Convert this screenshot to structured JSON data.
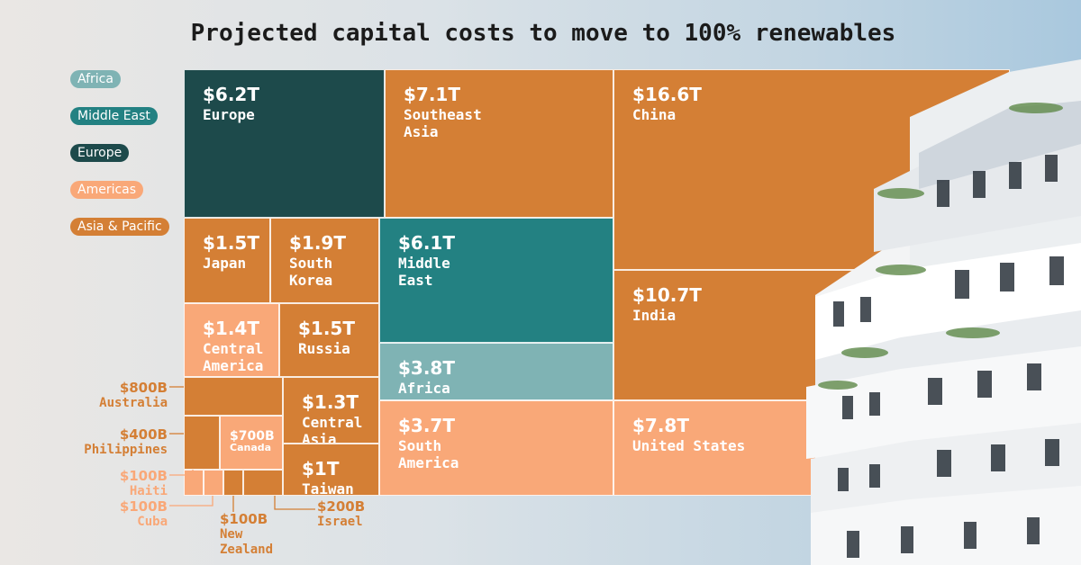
{
  "title": "Projected capital costs to move to 100% renewables",
  "colors": {
    "Africa": "#7fb3b4",
    "Middle East": "#238182",
    "Europe": "#1d4a4b",
    "Americas": "#f9a878",
    "Asia & Pacific": "#d47f35"
  },
  "legend": [
    {
      "label": "Africa",
      "color": "#7fb3b4",
      "text_color": "#ffffff"
    },
    {
      "label": "Middle East",
      "color": "#238182",
      "text_color": "#ffffff"
    },
    {
      "label": "Europe",
      "color": "#1d4a4b",
      "text_color": "#ffffff"
    },
    {
      "label": "Americas",
      "color": "#f9a878",
      "text_color": "#ffffff"
    },
    {
      "label": "Asia & Pacific",
      "color": "#d47f35",
      "text_color": "#ffffff"
    }
  ],
  "chart_data": {
    "type": "treemap",
    "unit": "USD",
    "items": [
      {
        "name": "China",
        "value": 16.6,
        "label": "$16.6T",
        "region": "Asia & Pacific"
      },
      {
        "name": "India",
        "value": 10.7,
        "label": "$10.7T",
        "region": "Asia & Pacific"
      },
      {
        "name": "United States",
        "value": 7.8,
        "label": "$7.8T",
        "region": "Americas"
      },
      {
        "name": "Southeast\nAsia",
        "value": 7.1,
        "label": "$7.1T",
        "region": "Asia & Pacific"
      },
      {
        "name": "Europe",
        "value": 6.2,
        "label": "$6.2T",
        "region": "Europe"
      },
      {
        "name": "Middle\nEast",
        "value": 6.1,
        "label": "$6.1T",
        "region": "Middle East"
      },
      {
        "name": "Africa",
        "value": 3.8,
        "label": "$3.8T",
        "region": "Africa"
      },
      {
        "name": "South\nAmerica",
        "value": 3.7,
        "label": "$3.7T",
        "region": "Americas"
      },
      {
        "name": "South\nKorea",
        "value": 1.9,
        "label": "$1.9T",
        "region": "Asia & Pacific"
      },
      {
        "name": "Japan",
        "value": 1.5,
        "label": "$1.5T",
        "region": "Asia & Pacific"
      },
      {
        "name": "Russia",
        "value": 1.5,
        "label": "$1.5T",
        "region": "Asia & Pacific"
      },
      {
        "name": "Central\nAmerica",
        "value": 1.4,
        "label": "$1.4T",
        "region": "Americas"
      },
      {
        "name": "Central\nAsia",
        "value": 1.3,
        "label": "$1.3T",
        "region": "Asia & Pacific"
      },
      {
        "name": "Taiwan",
        "value": 1.0,
        "label": "$1T",
        "region": "Asia & Pacific"
      },
      {
        "name": "Australia",
        "value": 0.8,
        "label": "$800B",
        "region": "Asia & Pacific"
      },
      {
        "name": "Canada",
        "value": 0.7,
        "label": "$700B",
        "region": "Americas"
      },
      {
        "name": "Philippines",
        "value": 0.4,
        "label": "$400B",
        "region": "Asia & Pacific"
      },
      {
        "name": "Israel",
        "value": 0.2,
        "label": "$200B",
        "region": "Asia & Pacific"
      },
      {
        "name": "Haiti",
        "value": 0.1,
        "label": "$100B",
        "region": "Americas"
      },
      {
        "name": "Cuba",
        "value": 0.1,
        "label": "$100B",
        "region": "Americas"
      },
      {
        "name": "New\nZealand",
        "value": 0.1,
        "label": "$100B",
        "region": "Asia & Pacific"
      }
    ]
  }
}
